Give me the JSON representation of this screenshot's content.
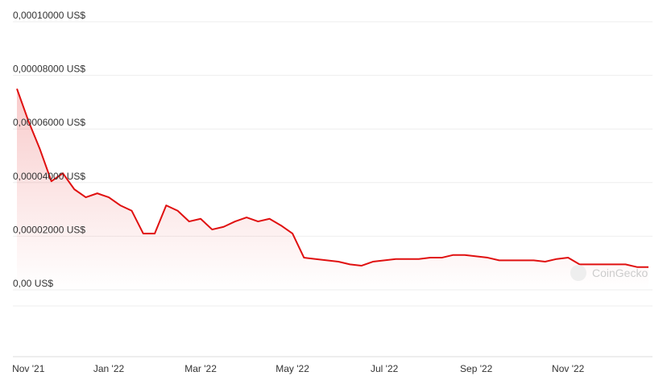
{
  "chart_data": {
    "type": "line",
    "categories": [
      null,
      "Nov '21",
      null,
      null,
      null,
      null,
      null,
      null,
      "Jan '22",
      null,
      null,
      null,
      null,
      null,
      null,
      null,
      "Mar '22",
      null,
      null,
      null,
      null,
      null,
      null,
      null,
      "May '22",
      null,
      null,
      null,
      null,
      null,
      null,
      null,
      "Jul '22",
      null,
      null,
      null,
      null,
      null,
      null,
      null,
      "Sep '22",
      null,
      null,
      null,
      null,
      null,
      null,
      null,
      "Nov '22",
      null,
      null,
      null,
      null,
      null,
      null,
      null
    ],
    "series": [
      {
        "color": "#e01010",
        "values": [
          7.5e-05,
          6.3e-05,
          5.25e-05,
          4.05e-05,
          4.35e-05,
          3.75e-05,
          3.45e-05,
          3.6e-05,
          3.45e-05,
          3.15e-05,
          2.95e-05,
          2.1e-05,
          2.1e-05,
          3.15e-05,
          2.95e-05,
          2.55e-05,
          2.65e-05,
          2.25e-05,
          2.35e-05,
          2.55e-05,
          2.7e-05,
          2.55e-05,
          2.65e-05,
          2.4e-05,
          2.1e-05,
          1.2e-05,
          1.15e-05,
          1.1e-05,
          1.05e-05,
          9.5e-06,
          9e-06,
          1.05e-05,
          1.1e-05,
          1.15e-05,
          1.15e-05,
          1.15e-05,
          1.2e-05,
          1.2e-05,
          1.3e-05,
          1.3e-05,
          1.25e-05,
          1.2e-05,
          1.1e-05,
          1.1e-05,
          1.1e-05,
          1.1e-05,
          1.05e-05,
          1.15e-05,
          1.2e-05,
          9.5e-06,
          9.5e-06,
          9.5e-06,
          9.5e-06,
          9.5e-06,
          8.5e-06,
          8.5e-06
        ]
      }
    ],
    "ylim": [
      0,
      0.0001
    ],
    "yticks": [
      {
        "value": 0,
        "label": "0,00 US$"
      },
      {
        "value": 2e-05,
        "label": "0,00002000 US$"
      },
      {
        "value": 4e-05,
        "label": "0,00004000 US$"
      },
      {
        "value": 6e-05,
        "label": "0,00006000 US$"
      },
      {
        "value": 8e-05,
        "label": "0,00008000 US$"
      },
      {
        "value": 0.0001,
        "label": "0,00010000 US$"
      }
    ],
    "grid": true,
    "annotations": [
      "CoinGecko"
    ]
  }
}
